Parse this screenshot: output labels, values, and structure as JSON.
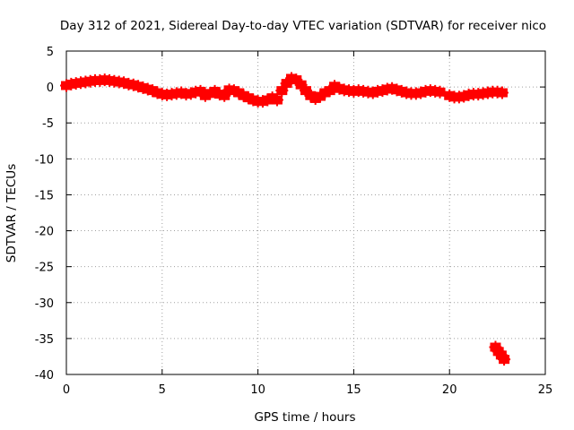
{
  "chart_data": {
    "type": "scatter",
    "title": "Day 312 of 2021, Sidereal Day-to-day VTEC variation (SDTVAR) for receiver nico",
    "xlabel": "GPS time / hours",
    "ylabel": "SDTVAR / TECUs",
    "xlim": [
      0,
      25
    ],
    "ylim": [
      -40,
      5
    ],
    "xticks": [
      "0",
      "5",
      "10",
      "15",
      "20",
      "25"
    ],
    "yticks": [
      "5",
      "0",
      "-5",
      "-10",
      "-15",
      "-20",
      "-25",
      "-30",
      "-35",
      "-40"
    ],
    "grid": true,
    "marker": "plus",
    "color": "#ff0000",
    "series": [
      {
        "name": "SDTVAR",
        "x": [
          0.0,
          0.25,
          0.5,
          0.75,
          1.0,
          1.25,
          1.5,
          1.75,
          2.0,
          2.25,
          2.5,
          2.75,
          3.0,
          3.25,
          3.5,
          3.75,
          4.0,
          4.25,
          4.5,
          4.75,
          5.0,
          5.25,
          5.5,
          5.75,
          6.0,
          6.25,
          6.5,
          6.75,
          7.0,
          7.25,
          7.5,
          7.75,
          8.0,
          8.25,
          8.5,
          8.75,
          9.0,
          9.25,
          9.5,
          9.75,
          10.0,
          10.25,
          10.5,
          10.75,
          11.0,
          11.25,
          11.5,
          11.75,
          12.0,
          12.25,
          12.5,
          12.75,
          13.0,
          13.25,
          13.5,
          13.75,
          14.0,
          14.25,
          14.5,
          14.75,
          15.0,
          15.25,
          15.5,
          15.75,
          16.0,
          16.25,
          16.5,
          16.75,
          17.0,
          17.25,
          17.5,
          17.75,
          18.0,
          18.25,
          18.5,
          18.75,
          19.0,
          19.25,
          19.5,
          20.0,
          20.25,
          20.5,
          20.75,
          21.0,
          21.25,
          21.5,
          21.75,
          22.0,
          22.25,
          22.5,
          22.75,
          22.4,
          22.55,
          22.7,
          22.85
        ],
        "y": [
          0.2,
          0.4,
          0.5,
          0.6,
          0.7,
          0.8,
          0.9,
          0.9,
          1.0,
          0.9,
          0.8,
          0.7,
          0.6,
          0.4,
          0.3,
          0.1,
          -0.1,
          -0.3,
          -0.5,
          -0.8,
          -1.0,
          -1.1,
          -1.0,
          -0.9,
          -0.8,
          -1.0,
          -0.9,
          -0.7,
          -0.6,
          -1.2,
          -0.9,
          -0.6,
          -1.0,
          -1.2,
          -0.4,
          -0.5,
          -0.8,
          -1.2,
          -1.5,
          -1.8,
          -2.0,
          -2.0,
          -1.8,
          -1.5,
          -1.8,
          -0.5,
          0.5,
          1.2,
          1.0,
          0.3,
          -0.5,
          -1.2,
          -1.6,
          -1.3,
          -0.8,
          -0.5,
          0.1,
          -0.2,
          -0.4,
          -0.5,
          -0.6,
          -0.5,
          -0.6,
          -0.7,
          -0.8,
          -0.6,
          -0.5,
          -0.3,
          -0.2,
          -0.4,
          -0.6,
          -0.8,
          -0.9,
          -0.9,
          -0.8,
          -0.6,
          -0.5,
          -0.6,
          -0.7,
          -1.2,
          -1.4,
          -1.4,
          -1.3,
          -1.1,
          -1.0,
          -1.0,
          -0.9,
          -0.8,
          -0.7,
          -0.7,
          -0.8,
          -36.2,
          -36.8,
          -37.3,
          -37.9
        ]
      }
    ]
  }
}
